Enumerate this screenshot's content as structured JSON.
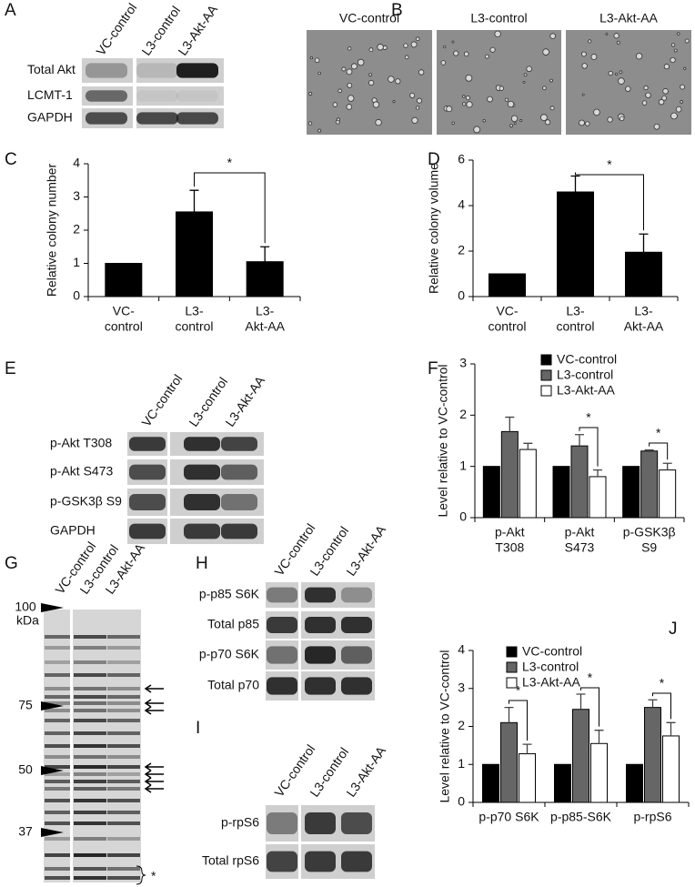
{
  "blots": {
    "A": {
      "panel": "A",
      "lanes": [
        "VC-control",
        "L3-control",
        "L3-Akt-AA"
      ],
      "rows": [
        "Total Akt",
        "LCMT-1",
        "GAPDH"
      ]
    },
    "B": {
      "panel": "B",
      "images": [
        "VC-control",
        "L3-control",
        "L3-Akt-AA"
      ]
    },
    "E": {
      "panel": "E",
      "lanes": [
        "VC-control",
        "L3-control",
        "L3-Akt-AA"
      ],
      "rows": [
        "p-Akt T308",
        "p-Akt S473",
        "p-GSK3β S9",
        "GAPDH"
      ]
    },
    "G": {
      "panel": "G",
      "lanes": [
        "VC-control",
        "L3-control",
        "L3-Akt-AA"
      ],
      "unit": "kDa",
      "markers": [
        100,
        75,
        50,
        37
      ],
      "annotation": "*"
    },
    "H": {
      "panel": "H",
      "lanes": [
        "VC-control",
        "L3-control",
        "L3-Akt-AA"
      ],
      "rows": [
        "p-p85 S6K",
        "Total p85",
        "p-p70 S6K",
        "Total p70"
      ]
    },
    "I": {
      "panel": "I",
      "lanes": [
        "VC-control",
        "L3-control",
        "L3-Akt-AA"
      ],
      "rows": [
        "p-rpS6",
        "Total rpS6"
      ]
    }
  },
  "chart_data": [
    {
      "type": "bar",
      "panel": "C",
      "ylabel": "Relative colony number",
      "categories": [
        [
          "VC-",
          "control"
        ],
        [
          "L3-",
          "control"
        ],
        [
          "L3-",
          "Akt-AA"
        ]
      ],
      "values": [
        1,
        2.55,
        1.05
      ],
      "errors": [
        null,
        0.65,
        0.45
      ],
      "color": "#000000",
      "ylim": [
        0,
        4
      ],
      "yticks": [
        0,
        1,
        2,
        3,
        4
      ],
      "annotations": [
        "*"
      ]
    },
    {
      "type": "bar",
      "panel": "D",
      "ylabel": "Relative colony volume",
      "categories": [
        [
          "VC-",
          "control"
        ],
        [
          "L3-",
          "control"
        ],
        [
          "L3-",
          "Akt-AA"
        ]
      ],
      "values": [
        1,
        4.6,
        1.95
      ],
      "errors": [
        null,
        0.7,
        0.8
      ],
      "color": "#000000",
      "ylim": [
        0,
        6
      ],
      "yticks": [
        0,
        2,
        4,
        6
      ],
      "annotations": [
        "*"
      ]
    },
    {
      "type": "bar",
      "panel": "F",
      "ylabel": "Level relative to VC-control",
      "categories": [
        [
          "p-Akt",
          "T308"
        ],
        [
          "p-Akt",
          "S473"
        ],
        [
          "p-GSK3β",
          "S9"
        ]
      ],
      "series": [
        {
          "name": "VC-control",
          "color": "#000000",
          "values": [
            1,
            1,
            1
          ],
          "errors": [
            null,
            null,
            null
          ]
        },
        {
          "name": "L3-control",
          "color": "#666666",
          "values": [
            1.68,
            1.4,
            1.3
          ],
          "errors": [
            0.28,
            0.22,
            0.02
          ]
        },
        {
          "name": "L3-Akt-AA",
          "color": "#ffffff",
          "values": [
            1.33,
            0.8,
            0.93
          ],
          "errors": [
            0.12,
            0.13,
            0.13
          ]
        }
      ],
      "ylim": [
        0,
        3
      ],
      "yticks": [
        0,
        1,
        2,
        3
      ],
      "annotations": [
        "*",
        "*"
      ]
    },
    {
      "type": "bar",
      "panel": "J",
      "ylabel": "Level relative to VC-control",
      "categories": [
        [
          "p-p70 S6K"
        ],
        [
          "p-p85-S6K"
        ],
        [
          "p-rpS6"
        ]
      ],
      "series": [
        {
          "name": "VC-control",
          "color": "#000000",
          "values": [
            1,
            1,
            1
          ],
          "errors": [
            null,
            null,
            null
          ]
        },
        {
          "name": "L3-control",
          "color": "#666666",
          "values": [
            2.1,
            2.45,
            2.5
          ],
          "errors": [
            0.4,
            0.4,
            0.2
          ]
        },
        {
          "name": "L3-Akt-AA",
          "color": "#ffffff",
          "values": [
            1.28,
            1.55,
            1.75
          ],
          "errors": [
            0.25,
            0.35,
            0.35
          ]
        }
      ],
      "ylim": [
        0,
        4
      ],
      "yticks": [
        0,
        1,
        2,
        3,
        4
      ],
      "annotations": [
        "*",
        "*",
        "*"
      ]
    }
  ]
}
